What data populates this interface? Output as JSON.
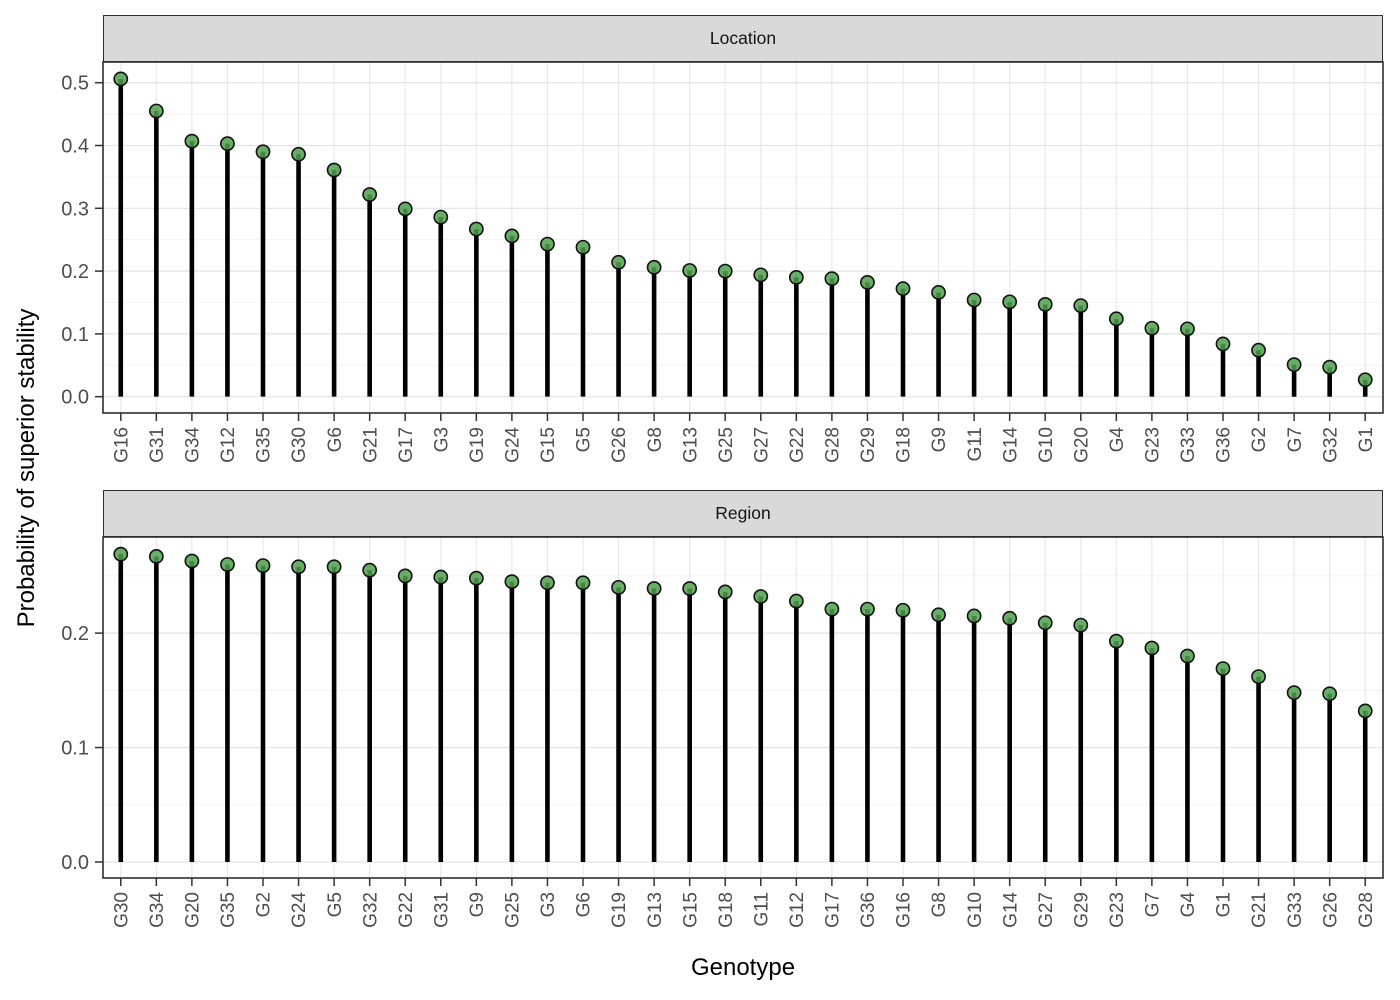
{
  "figure": {
    "y_axis_title": "Probability of superior stability",
    "x_axis_title": "Genotype"
  },
  "colors": {
    "stem": "#000000",
    "point_fill": "#4da04b",
    "point_fill_alpha": 0.85,
    "point_stroke": "#111111",
    "strip_background": "#d9d9d9",
    "panel_border": "#2e2e2e",
    "grid_major": "#e3e3e3",
    "grid_minor": "#f0f0f0",
    "grid_vertical": "#e7e7e7",
    "axis_text": "#4d4d4d",
    "tick_mark": "#333333"
  },
  "chart_data": [
    {
      "type": "lollipop",
      "title": "Location",
      "xlabel": "Genotype",
      "ylabel": "Probability of superior stability",
      "legend": "none",
      "grid": "on",
      "categories": [
        "G16",
        "G31",
        "G34",
        "G12",
        "G35",
        "G30",
        "G6",
        "G21",
        "G17",
        "G3",
        "G19",
        "G24",
        "G15",
        "G5",
        "G26",
        "G8",
        "G13",
        "G25",
        "G27",
        "G22",
        "G28",
        "G29",
        "G18",
        "G9",
        "G11",
        "G14",
        "G10",
        "G20",
        "G4",
        "G23",
        "G33",
        "G36",
        "G2",
        "G7",
        "G32",
        "G1"
      ],
      "values": [
        0.506,
        0.455,
        0.407,
        0.403,
        0.39,
        0.386,
        0.361,
        0.322,
        0.299,
        0.286,
        0.267,
        0.256,
        0.243,
        0.238,
        0.214,
        0.206,
        0.201,
        0.2,
        0.194,
        0.19,
        0.188,
        0.182,
        0.172,
        0.166,
        0.154,
        0.151,
        0.147,
        0.145,
        0.124,
        0.109,
        0.108,
        0.084,
        0.074,
        0.051,
        0.047,
        0.027
      ],
      "ylim": [
        -0.026,
        0.533
      ],
      "yticks": [
        0,
        0.1,
        0.2,
        0.3,
        0.4,
        0.5
      ],
      "ytick_labels": [
        "0.0",
        "0.1",
        "0.2",
        "0.3",
        "0.4",
        "0.5"
      ],
      "yticks_minor": [
        0.05,
        0.15,
        0.25,
        0.35,
        0.45
      ]
    },
    {
      "type": "lollipop",
      "title": "Region",
      "xlabel": "Genotype",
      "ylabel": "Probability of superior stability",
      "legend": "none",
      "grid": "on",
      "categories": [
        "G30",
        "G34",
        "G20",
        "G35",
        "G2",
        "G24",
        "G5",
        "G32",
        "G22",
        "G31",
        "G9",
        "G25",
        "G3",
        "G6",
        "G19",
        "G13",
        "G15",
        "G18",
        "G11",
        "G12",
        "G17",
        "G36",
        "G16",
        "G8",
        "G10",
        "G14",
        "G27",
        "G29",
        "G23",
        "G7",
        "G4",
        "G1",
        "G21",
        "G33",
        "G26",
        "G28"
      ],
      "values": [
        0.269,
        0.267,
        0.263,
        0.26,
        0.259,
        0.258,
        0.258,
        0.255,
        0.25,
        0.249,
        0.248,
        0.245,
        0.244,
        0.244,
        0.24,
        0.239,
        0.239,
        0.236,
        0.232,
        0.228,
        0.221,
        0.221,
        0.22,
        0.216,
        0.215,
        0.213,
        0.209,
        0.207,
        0.193,
        0.187,
        0.18,
        0.169,
        0.162,
        0.148,
        0.147,
        0.132
      ],
      "ylim": [
        -0.014,
        0.284
      ],
      "yticks": [
        0,
        0.1,
        0.2
      ],
      "ytick_labels": [
        "0.0",
        "0.1",
        "0.2"
      ],
      "yticks_minor": [
        0.05,
        0.15,
        0.25
      ]
    }
  ]
}
